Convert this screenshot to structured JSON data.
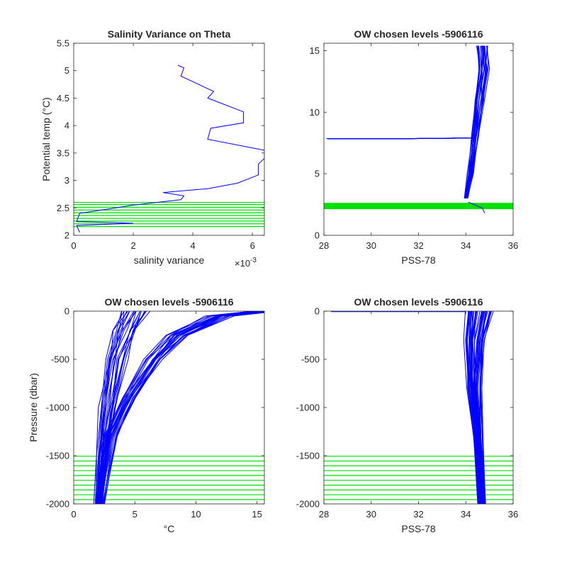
{
  "colors": {
    "profile": "#0000ff",
    "levels": "#00e000",
    "axis": "#262626",
    "background": "#ffffff"
  },
  "chart_data": [
    {
      "type": "line",
      "title": "Salinity Variance on Theta",
      "xlabel": "salinity variance",
      "ylabel": "Potential temp (°C)",
      "x_exponent": "×10",
      "x_exponent_power": "-3",
      "xlim": [
        0,
        0.0064
      ],
      "ylim": [
        2,
        5.5
      ],
      "x_ticks": [
        0,
        0.002,
        0.004,
        0.006
      ],
      "x_tick_labels": [
        "0",
        "2",
        "4",
        "6"
      ],
      "y_ticks": [
        2,
        2.5,
        3,
        3.5,
        4,
        4.5,
        5,
        5.5
      ],
      "y_tick_labels": [
        "2",
        "2.5",
        "3",
        "3.5",
        "4",
        "4.5",
        "5",
        "5.5"
      ],
      "series": [
        {
          "values_x": [
            0.0035,
            0.0037,
            0.0036,
            0.004,
            0.0047,
            0.0045,
            0.0057,
            0.0057,
            0.0046,
            0.0045,
            0.0064,
            0.0064,
            0.0062,
            0.0062,
            0.0055,
            0.0045,
            0.003,
            0.0037,
            0.0036,
            0.002,
            0.0008,
            0.0002,
            0.0001,
            0.002,
            0.0001,
            0.0002
          ],
          "values_y": [
            5.1,
            5.05,
            4.9,
            4.8,
            4.62,
            4.5,
            4.25,
            4.05,
            3.95,
            3.75,
            3.55,
            3.4,
            3.3,
            3.1,
            2.95,
            2.85,
            2.78,
            2.72,
            2.65,
            2.55,
            2.45,
            2.4,
            2.25,
            2.22,
            2.18,
            2.05
          ]
        }
      ],
      "chosen_levels": [
        2.16,
        2.21,
        2.26,
        2.31,
        2.36,
        2.41,
        2.46,
        2.51,
        2.56,
        2.6
      ]
    },
    {
      "type": "line",
      "title": "OW chosen levels -5906116",
      "xlabel": "PSS-78",
      "ylabel": "",
      "xlim": [
        28,
        36
      ],
      "ylim": [
        0,
        15.6
      ],
      "x_ticks": [
        28,
        30,
        32,
        34,
        36
      ],
      "x_tick_labels": [
        "28",
        "30",
        "32",
        "34",
        "36"
      ],
      "y_ticks": [
        0,
        5,
        10,
        15
      ],
      "y_tick_labels": [
        "0",
        "5",
        "10",
        "15"
      ],
      "series": [
        {
          "values_x": [
            34.0,
            34.2,
            34.4,
            34.6,
            34.75,
            34.7
          ],
          "values_y": [
            3.0,
            5.0,
            8.0,
            11.0,
            13.5,
            15.4
          ]
        },
        {
          "values_x": [
            28.2,
            31.5,
            34.0
          ],
          "values_y": [
            7.85,
            7.85,
            7.9
          ]
        },
        {
          "values_x": [
            34.1,
            34.7,
            34.8
          ],
          "values_y": [
            2.7,
            2.2,
            1.8
          ]
        }
      ],
      "chosen_levels": [
        2.16,
        2.21,
        2.26,
        2.31,
        2.36,
        2.41,
        2.46,
        2.51,
        2.56,
        2.6
      ]
    },
    {
      "type": "line",
      "title": "OW chosen levels -5906116",
      "xlabel": "°C",
      "ylabel": "Pressure (dbar)",
      "xlim": [
        0,
        15.6
      ],
      "ylim": [
        -2000,
        0
      ],
      "x_ticks": [
        0,
        5,
        10,
        15
      ],
      "x_tick_labels": [
        "0",
        "5",
        "10",
        "15"
      ],
      "y_ticks": [
        -2000,
        -1500,
        -1000,
        -500,
        0
      ],
      "y_tick_labels": [
        "-2000",
        "-1500",
        "-1000",
        "-500",
        "0"
      ],
      "series": [
        {
          "values_x": [
            2.0,
            2.3,
            2.8,
            3.5,
            4.2,
            5.0
          ],
          "values_y": [
            -2000,
            -1500,
            -1000,
            -500,
            -200,
            0
          ]
        },
        {
          "values_x": [
            2.2,
            3.0,
            4.5,
            6.5,
            8.5,
            12.0,
            15.5
          ],
          "values_y": [
            -2000,
            -1300,
            -900,
            -500,
            -250,
            -50,
            0
          ]
        }
      ],
      "chosen_levels": [
        -1505,
        -1555,
        -1605,
        -1655,
        -1705,
        -1755,
        -1805,
        -1855,
        -1905,
        -1955
      ]
    },
    {
      "type": "line",
      "title": "OW chosen levels -5906116",
      "xlabel": "PSS-78",
      "ylabel": "",
      "xlim": [
        28,
        36
      ],
      "ylim": [
        -2000,
        0
      ],
      "x_ticks": [
        28,
        30,
        32,
        34,
        36
      ],
      "x_tick_labels": [
        "28",
        "30",
        "32",
        "34",
        "36"
      ],
      "y_ticks": [
        -2000,
        -1500,
        -1000,
        -500,
        0
      ],
      "y_tick_labels": [
        "-2000",
        "-1500",
        "-1000",
        "-500",
        "0"
      ],
      "series": [
        {
          "values_x": [
            34.6,
            34.4,
            34.2,
            34.1,
            34.2
          ],
          "values_y": [
            -2000,
            -1300,
            -800,
            -300,
            0
          ]
        },
        {
          "values_x": [
            34.75,
            34.6,
            34.5,
            34.6,
            34.9
          ],
          "values_y": [
            -2000,
            -1300,
            -800,
            -300,
            0
          ]
        },
        {
          "values_x": [
            28.3,
            34.0
          ],
          "values_y": [
            -5,
            -5
          ]
        }
      ],
      "chosen_levels": [
        -1505,
        -1555,
        -1605,
        -1655,
        -1705,
        -1755,
        -1805,
        -1855,
        -1905,
        -1955
      ]
    }
  ]
}
